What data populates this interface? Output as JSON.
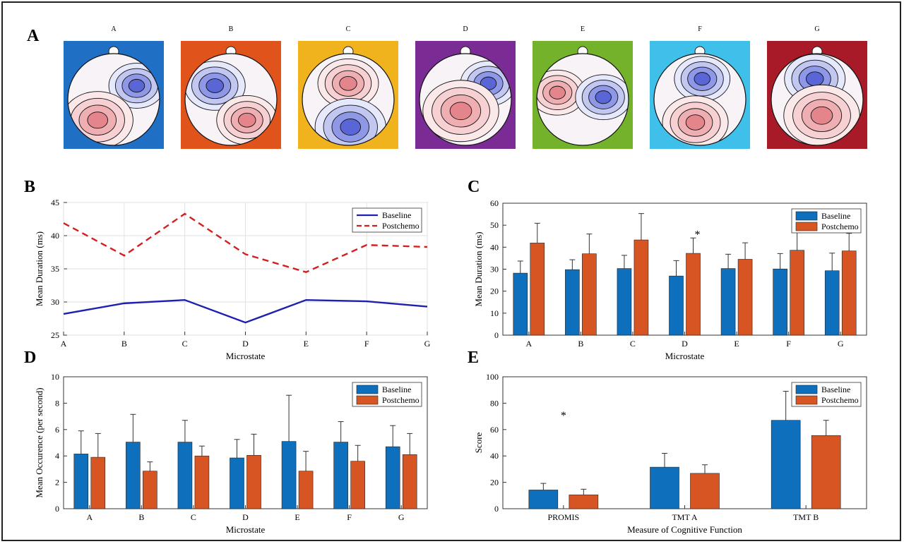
{
  "panel_labels": {
    "A": "A",
    "B": "B",
    "C": "C",
    "D": "D",
    "E": "E"
  },
  "topomaps": {
    "maps": [
      {
        "label": "A",
        "bg": "#1f6fc4"
      },
      {
        "label": "B",
        "bg": "#e0531b"
      },
      {
        "label": "C",
        "bg": "#f0b31d"
      },
      {
        "label": "D",
        "bg": "#7a2c94"
      },
      {
        "label": "E",
        "bg": "#74b22c"
      },
      {
        "label": "F",
        "bg": "#3fc0ea"
      },
      {
        "label": "G",
        "bg": "#a81a27"
      }
    ]
  },
  "colors": {
    "baseline": "#0e6fbd",
    "postchemo": "#d75522",
    "line_baseline": "#1f1fb0",
    "line_postchemo": "#d22020"
  },
  "chart_data": [
    {
      "panel": "B",
      "type": "line",
      "x": [
        "A",
        "B",
        "C",
        "D",
        "E",
        "F",
        "G"
      ],
      "xlabel": "Microstate",
      "ylabel": "Mean Duration (ms)",
      "ylim": [
        25,
        45
      ],
      "yticks": [
        25,
        30,
        35,
        40,
        45
      ],
      "grid": true,
      "legend_position": "top-right",
      "series": [
        {
          "name": "Baseline",
          "style": "solid",
          "values": [
            28.2,
            29.8,
            30.3,
            26.9,
            30.3,
            30.1,
            29.3
          ]
        },
        {
          "name": "Postchemo",
          "style": "dashed",
          "values": [
            41.9,
            37.0,
            43.3,
            37.2,
            34.5,
            38.6,
            38.3
          ]
        }
      ]
    },
    {
      "panel": "C",
      "type": "bar",
      "categories": [
        "A",
        "B",
        "C",
        "D",
        "E",
        "F",
        "G"
      ],
      "xlabel": "Microstate",
      "ylabel": "Mean Duration (ms)",
      "ylim": [
        0,
        60
      ],
      "yticks": [
        0,
        10,
        20,
        30,
        40,
        50,
        60
      ],
      "legend_position": "top-right",
      "annotations": [
        {
          "text": "*",
          "category": "D",
          "y": 46
        }
      ],
      "series": [
        {
          "name": "Baseline",
          "values": [
            28.2,
            29.8,
            30.3,
            26.9,
            30.3,
            30.1,
            29.3
          ],
          "errors": [
            5.5,
            4.5,
            6.0,
            7.0,
            6.5,
            7.0,
            8.0
          ]
        },
        {
          "name": "Postchemo",
          "values": [
            41.9,
            37.0,
            43.3,
            37.2,
            34.5,
            38.6,
            38.3
          ],
          "errors": [
            9.0,
            9.0,
            12.0,
            7.0,
            7.5,
            9.0,
            8.0
          ]
        }
      ]
    },
    {
      "panel": "D",
      "type": "bar",
      "categories": [
        "A",
        "B",
        "C",
        "D",
        "E",
        "F",
        "G"
      ],
      "xlabel": "Microstate",
      "ylabel": "Mean Occurence (per second)",
      "ylim": [
        0,
        10
      ],
      "yticks": [
        0,
        2,
        4,
        6,
        8,
        10
      ],
      "legend_position": "top-right",
      "series": [
        {
          "name": "Baseline",
          "values": [
            4.15,
            5.05,
            5.05,
            3.85,
            5.1,
            5.05,
            4.7
          ],
          "errors": [
            1.75,
            2.1,
            1.65,
            1.4,
            3.5,
            1.55,
            1.6
          ]
        },
        {
          "name": "Postchemo",
          "values": [
            3.9,
            2.85,
            4.0,
            4.05,
            2.85,
            3.6,
            4.1
          ],
          "errors": [
            1.8,
            0.7,
            0.75,
            1.6,
            1.5,
            1.2,
            1.6
          ]
        }
      ]
    },
    {
      "panel": "E",
      "type": "bar",
      "categories": [
        "PROMIS",
        "TMT A",
        "TMT B"
      ],
      "xlabel": "Measure of Cognitive Function",
      "ylabel": "Score",
      "ylim": [
        0,
        100
      ],
      "yticks": [
        0,
        20,
        40,
        60,
        80,
        100
      ],
      "legend_position": "top-right",
      "annotations": [
        {
          "text": "*",
          "category": "PROMIS",
          "y": 71
        }
      ],
      "series": [
        {
          "name": "Baseline",
          "values": [
            14.2,
            31.5,
            67.0
          ],
          "errors": [
            5.0,
            10.5,
            22.0
          ]
        },
        {
          "name": "Postchemo",
          "values": [
            10.5,
            26.8,
            55.5
          ],
          "errors": [
            4.3,
            6.5,
            11.5
          ]
        }
      ]
    }
  ]
}
